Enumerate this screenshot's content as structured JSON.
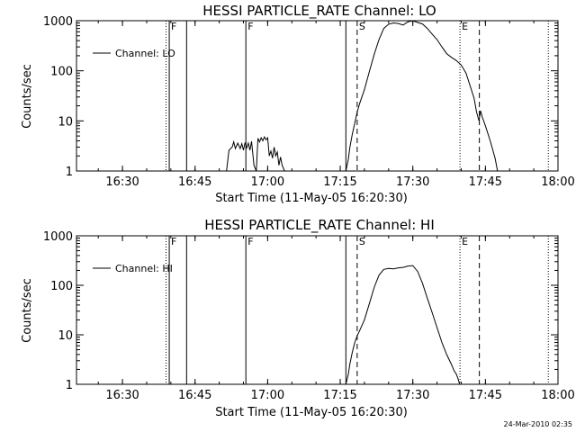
{
  "chart_data": [
    {
      "type": "line",
      "title": "HESSI PARTICLE_RATE Channel: LO",
      "xlabel": "Start Time (11-May-05 16:20:30)",
      "ylabel": "Counts/sec",
      "y_scale": "log",
      "ylim": [
        1,
        1000
      ],
      "xlim": [
        "16:20:30",
        "18:00:00"
      ],
      "y_ticks": [
        "1",
        "10",
        "100",
        "1000"
      ],
      "x_ticks": [
        "16:30",
        "16:45",
        "17:00",
        "17:15",
        "17:30",
        "17:45",
        "18:00"
      ],
      "legend": {
        "placement": "top-left",
        "entries": [
          "Channel: LO"
        ]
      },
      "markers": [
        {
          "time": "16:39:00",
          "style": "dotted",
          "label": ""
        },
        {
          "time": "16:39:40",
          "style": "solid",
          "label": "F"
        },
        {
          "time": "16:43:15",
          "style": "solid",
          "label": ""
        },
        {
          "time": "16:55:30",
          "style": "solid",
          "label": "F"
        },
        {
          "time": "17:16:10",
          "style": "solid",
          "label": ""
        },
        {
          "time": "17:18:30",
          "style": "dashed",
          "label": "S"
        },
        {
          "time": "17:39:45",
          "style": "dotted",
          "label": "E"
        },
        {
          "time": "17:43:45",
          "style": "dashed",
          "label": ""
        },
        {
          "time": "17:58:00",
          "style": "dotted",
          "label": ""
        }
      ],
      "series": [
        {
          "name": "Channel: LO",
          "segments": [
            {
              "x": [
                "16:50:45",
                "16:51:30",
                "16:52:00",
                "16:52:40",
                "16:53:00",
                "16:53:20",
                "16:53:50",
                "16:54:20",
                "16:54:40",
                "16:55:00",
                "16:55:20",
                "16:55:40",
                "16:56:00",
                "16:56:20",
                "16:56:40",
                "16:57:10",
                "16:57:40",
                "16:58:00",
                "16:58:20",
                "16:58:40",
                "16:59:00",
                "16:59:20",
                "16:59:40",
                "17:00:00",
                "17:00:20",
                "17:00:40",
                "17:01:00",
                "17:01:20",
                "17:01:40",
                "17:02:00",
                "17:02:20",
                "17:02:40",
                "17:03:00",
                "17:03:30",
                "17:03:50"
              ],
              "y": [
                1,
                1,
                2.6,
                3.0,
                3.8,
                2.8,
                3.6,
                2.8,
                3.5,
                2.6,
                3.7,
                2.9,
                3.6,
                2.6,
                3.9,
                1.3,
                1.0,
                4.5,
                3.8,
                4.6,
                4.0,
                4.8,
                4.2,
                4.6,
                2.0,
                2.5,
                1.8,
                3.0,
                2.0,
                2.4,
                1.3,
                1.9,
                1.3,
                1.0,
                1.0
              ]
            },
            {
              "x": [
                "17:16:10",
                "17:16:40",
                "17:17:00",
                "17:17:30",
                "17:18:00",
                "17:18:30",
                "17:19:00",
                "17:20:00",
                "17:21:00",
                "17:22:00",
                "17:23:00",
                "17:24:00",
                "17:25:00",
                "17:26:00",
                "17:27:00",
                "17:28:00",
                "17:29:00",
                "17:30:00",
                "17:31:00",
                "17:32:00",
                "17:33:00",
                "17:34:00",
                "17:35:00",
                "17:36:00",
                "17:37:00",
                "17:38:00",
                "17:39:00",
                "17:40:00",
                "17:41:00",
                "17:42:00",
                "17:42:40",
                "17:43:10",
                "17:43:40",
                "17:44:00",
                "17:44:20",
                "17:45:00",
                "17:46:00",
                "17:47:00",
                "17:47:30"
              ],
              "y": [
                1,
                1.7,
                3.0,
                5.5,
                9.0,
                15,
                22,
                42,
                95,
                210,
                420,
                700,
                850,
                900,
                880,
                820,
                950,
                1000,
                920,
                860,
                700,
                540,
                420,
                300,
                220,
                185,
                160,
                130,
                90,
                45,
                28,
                15,
                10,
                16,
                12,
                8,
                4,
                1.8,
                1.0
              ]
            }
          ]
        }
      ]
    },
    {
      "type": "line",
      "title": "HESSI PARTICLE_RATE Channel: HI",
      "xlabel": "Start Time (11-May-05 16:20:30)",
      "ylabel": "Counts/sec",
      "y_scale": "log",
      "ylim": [
        1,
        1000
      ],
      "xlim": [
        "16:20:30",
        "18:00:00"
      ],
      "y_ticks": [
        "1",
        "10",
        "100",
        "1000"
      ],
      "x_ticks": [
        "16:30",
        "16:45",
        "17:00",
        "17:15",
        "17:30",
        "17:45",
        "18:00"
      ],
      "legend": {
        "placement": "top-left",
        "entries": [
          "Channel: HI"
        ]
      },
      "markers": [
        {
          "time": "16:39:00",
          "style": "dotted",
          "label": ""
        },
        {
          "time": "16:39:40",
          "style": "solid",
          "label": "F"
        },
        {
          "time": "16:43:15",
          "style": "solid",
          "label": ""
        },
        {
          "time": "16:55:30",
          "style": "solid",
          "label": "F"
        },
        {
          "time": "17:16:10",
          "style": "solid",
          "label": ""
        },
        {
          "time": "17:18:30",
          "style": "dashed",
          "label": "S"
        },
        {
          "time": "17:39:45",
          "style": "dotted",
          "label": "E"
        },
        {
          "time": "17:43:45",
          "style": "dashed",
          "label": ""
        },
        {
          "time": "17:58:00",
          "style": "dotted",
          "label": ""
        }
      ],
      "series": [
        {
          "name": "Channel: HI",
          "segments": [
            {
              "x": [
                "17:16:10",
                "17:16:40",
                "17:17:00",
                "17:17:30",
                "17:18:00",
                "17:18:30",
                "17:19:00",
                "17:20:00",
                "17:21:00",
                "17:22:00",
                "17:23:00",
                "17:24:00",
                "17:25:00",
                "17:26:00",
                "17:27:00",
                "17:28:00",
                "17:29:00",
                "17:30:00",
                "17:31:00",
                "17:32:00",
                "17:33:00",
                "17:34:00",
                "17:35:00",
                "17:36:00",
                "17:37:00",
                "17:38:00",
                "17:38:30",
                "17:39:00",
                "17:39:20",
                "17:39:40"
              ],
              "y": [
                1,
                1.6,
                2.6,
                4.5,
                7.0,
                9.5,
                12,
                20,
                42,
                90,
                160,
                210,
                220,
                215,
                225,
                230,
                245,
                250,
                190,
                110,
                55,
                28,
                14,
                7,
                4,
                2.5,
                1.9,
                1.6,
                1.3,
                1.0
              ]
            }
          ]
        }
      ]
    }
  ],
  "footer": {
    "timestamp": "24-Mar-2010 02:35"
  }
}
